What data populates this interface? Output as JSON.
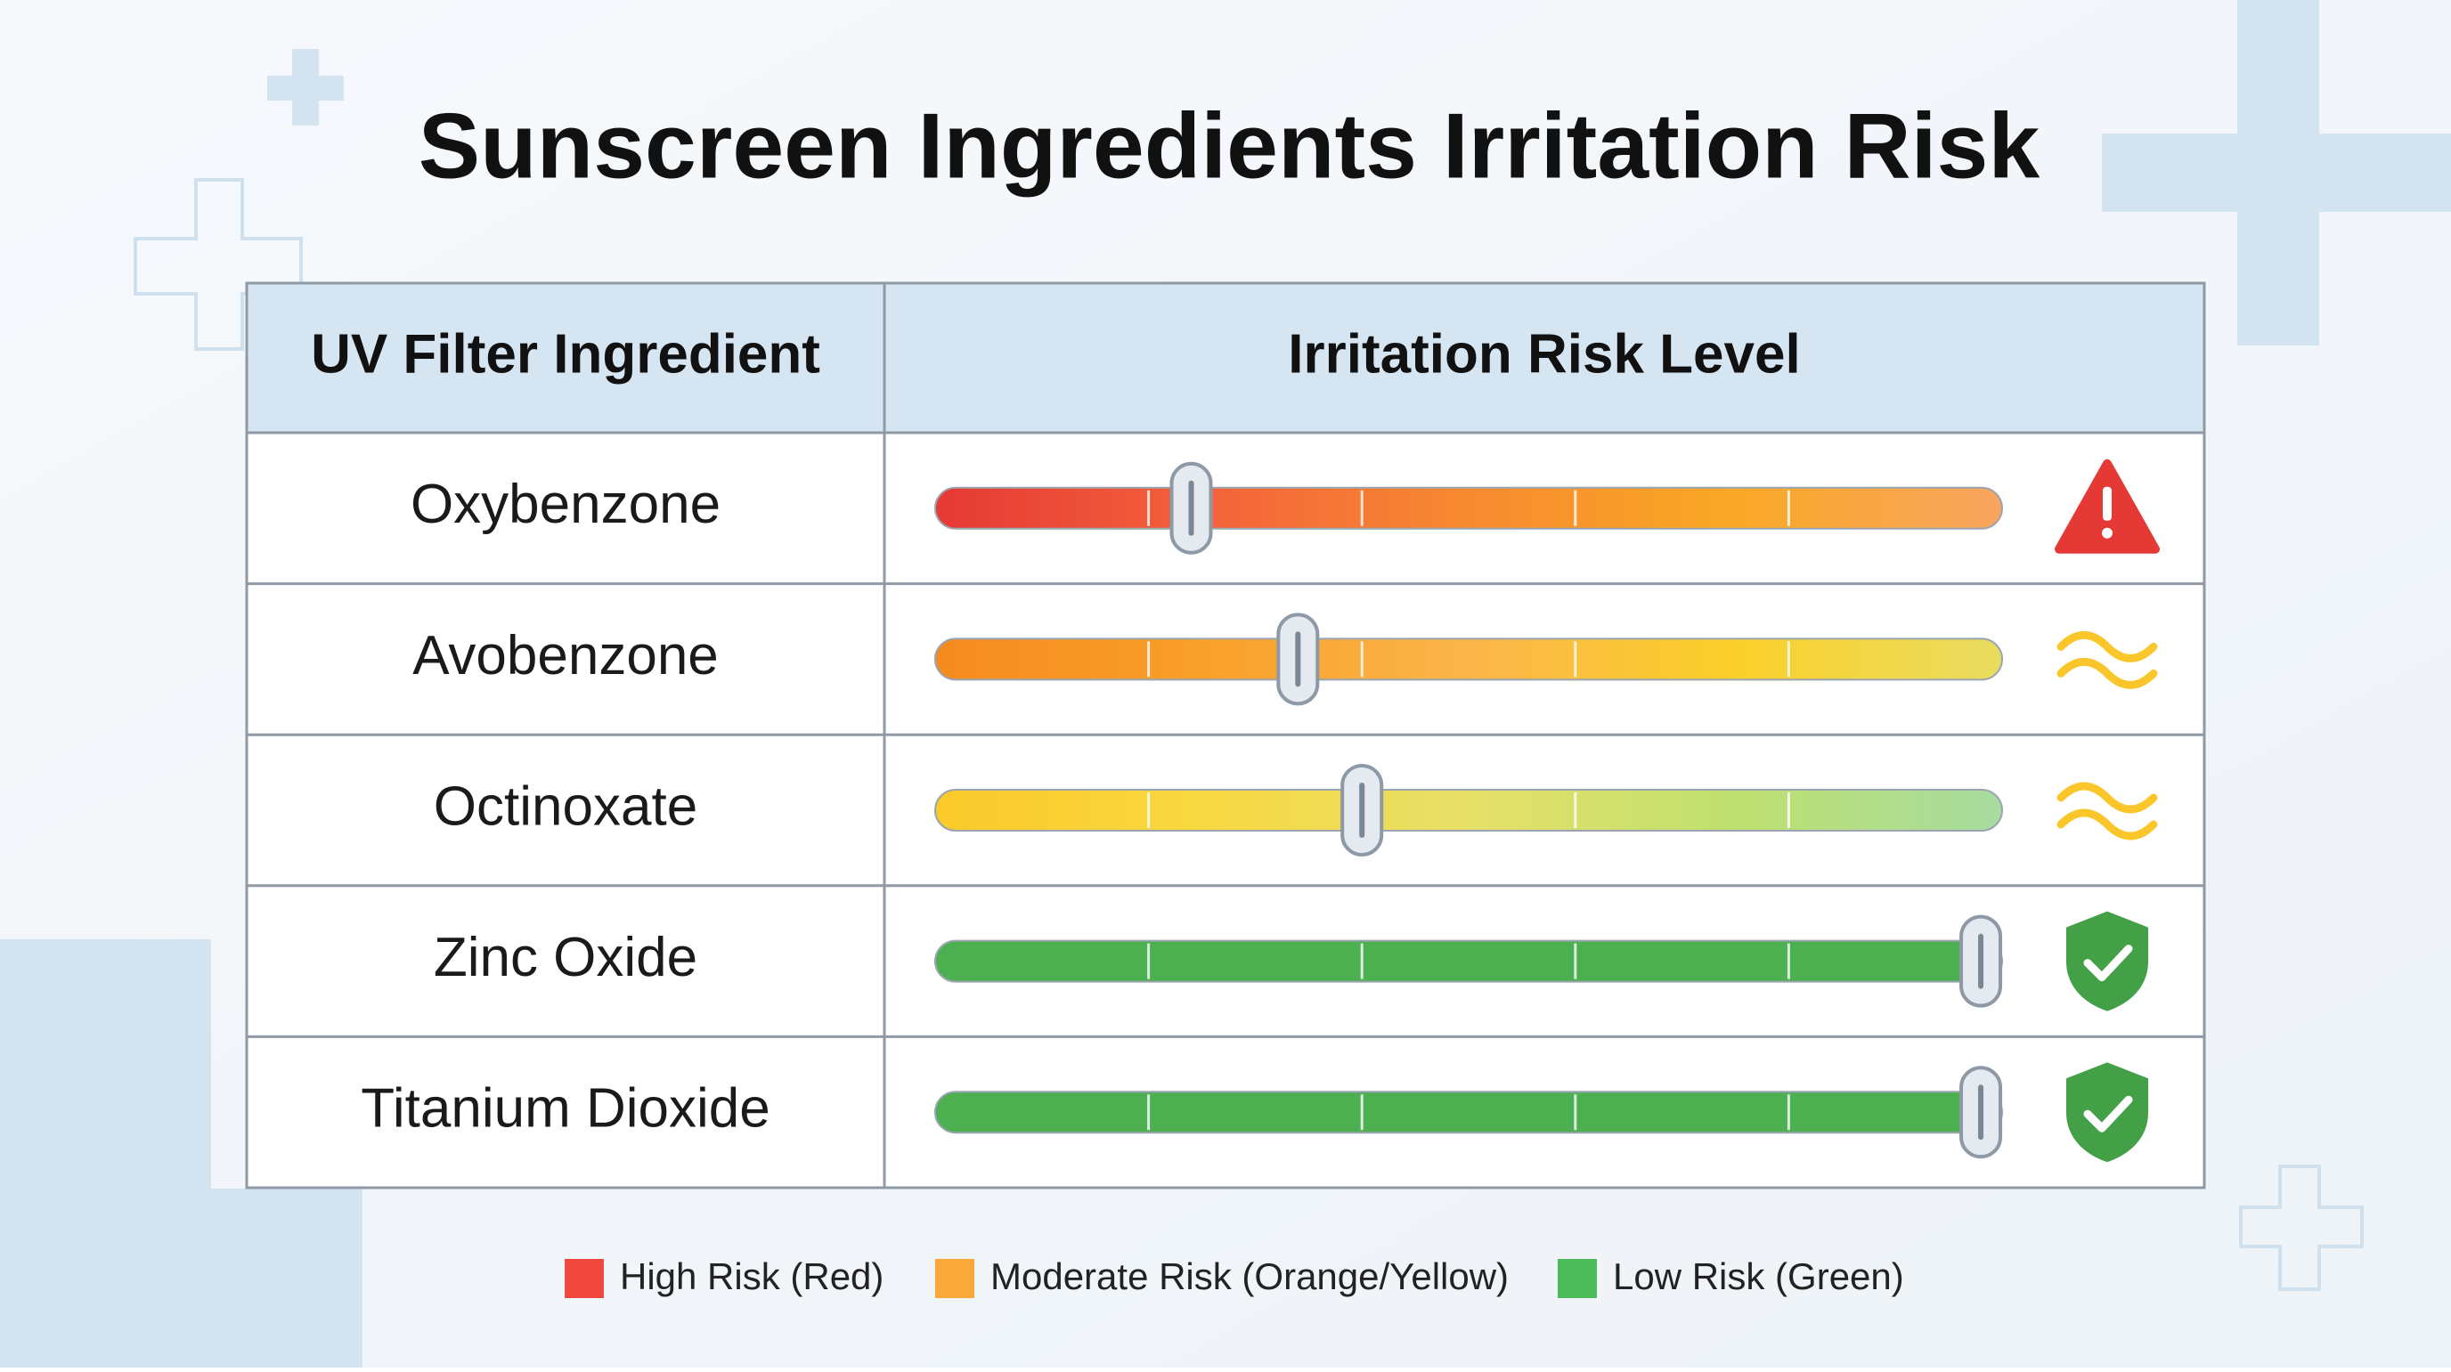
{
  "title": "Sunscreen Ingredients Irritation Risk",
  "table": {
    "header": [
      "UV Filter Ingredient",
      "Irritation Risk Level"
    ],
    "rows": [
      {
        "name": "Oxybenzone",
        "slider": 24,
        "gradient": [
          "#e53935",
          "#f4623a",
          "#f78a30",
          "#f9a825",
          "#f7a560"
        ],
        "icon": "warning"
      },
      {
        "name": "Avobenzone",
        "slider": 34,
        "gradient": [
          "#f58a1f",
          "#f9a02a",
          "#fbb54a",
          "#fbd02a",
          "#e8dc60"
        ],
        "icon": "wave"
      },
      {
        "name": "Octinoxate",
        "slider": 40,
        "gradient": [
          "#fbc92a",
          "#f8d840",
          "#e6e068",
          "#bfe070",
          "#a7dca0"
        ],
        "icon": "wave"
      },
      {
        "name": "Zinc Oxide",
        "slider": 98,
        "gradient": [
          "#4caf50",
          "#4caf50",
          "#4caf50",
          "#4caf50",
          "#4caf50"
        ],
        "icon": "shield"
      },
      {
        "name": "Titanium Dioxide",
        "slider": 98,
        "gradient": [
          "#4caf50",
          "#4caf50",
          "#4caf50",
          "#4caf50",
          "#4caf50"
        ],
        "icon": "shield"
      }
    ]
  },
  "legend": [
    {
      "label": "High Risk (Red)",
      "color": "#f0483e"
    },
    {
      "label": "Moderate Risk (Orange/Yellow)",
      "color": "#f9a83a"
    },
    {
      "label": "Low Risk (Green)",
      "color": "#4cbb5a"
    }
  ]
}
